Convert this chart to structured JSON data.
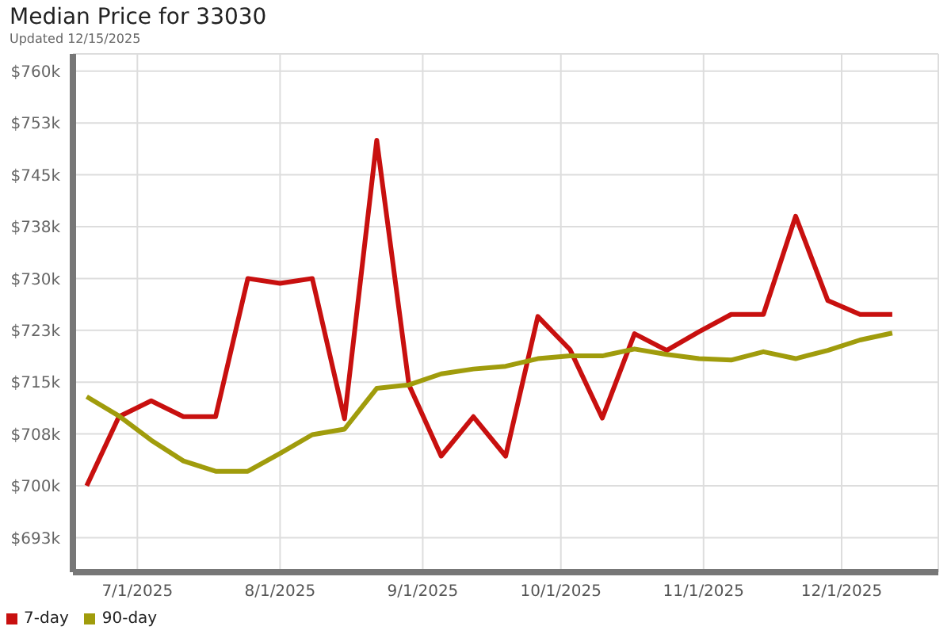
{
  "chart_data": {
    "type": "line",
    "title": "Median Price for 33030",
    "subtitle": "Updated 12/15/2025",
    "x": [
      "2025-06-20",
      "2025-06-27",
      "2025-07-04",
      "2025-07-11",
      "2025-07-18",
      "2025-07-25",
      "2025-08-01",
      "2025-08-08",
      "2025-08-15",
      "2025-08-22",
      "2025-08-29",
      "2025-09-05",
      "2025-09-12",
      "2025-09-19",
      "2025-09-26",
      "2025-10-03",
      "2025-10-10",
      "2025-10-17",
      "2025-10-24",
      "2025-10-31",
      "2025-11-07",
      "2025-11-14",
      "2025-11-21",
      "2025-11-28",
      "2025-12-05",
      "2025-12-12"
    ],
    "series": [
      {
        "name": "7-day",
        "color": "#c8100f",
        "values": [
          700,
          710,
          712.3,
          710,
          710,
          730,
          729.3,
          730,
          709.7,
          750,
          714.6,
          704.3,
          710,
          704.3,
          724.5,
          719.7,
          709.8,
          722,
          719.6,
          722.3,
          724.8,
          724.8,
          739,
          726.8,
          724.8,
          724.8
        ]
      },
      {
        "name": "90-day",
        "color": "#a09c0c",
        "values": [
          712.9,
          710.1,
          706.6,
          703.6,
          702.1,
          702.1,
          704.7,
          707.4,
          708.2,
          714.1,
          714.6,
          716.2,
          716.9,
          717.3,
          718.4,
          718.8,
          718.8,
          719.8,
          719,
          718.4,
          718.2,
          719.4,
          718.4,
          719.6,
          721.1,
          722.1
        ]
      }
    ],
    "xlim": [
      "2025-06-17",
      "2025-12-22"
    ],
    "xticks": [
      {
        "value": "2025-07-01",
        "label": "7/1/2025"
      },
      {
        "value": "2025-08-01",
        "label": "8/1/2025"
      },
      {
        "value": "2025-09-01",
        "label": "9/1/2025"
      },
      {
        "value": "2025-10-01",
        "label": "10/1/2025"
      },
      {
        "value": "2025-11-01",
        "label": "11/1/2025"
      },
      {
        "value": "2025-12-01",
        "label": "12/1/2025"
      }
    ],
    "ylim": [
      687.5,
      762.5
    ],
    "yticks": [
      {
        "value": 692.5,
        "label": "$693k"
      },
      {
        "value": 700,
        "label": "$700k"
      },
      {
        "value": 707.5,
        "label": "$708k"
      },
      {
        "value": 715,
        "label": "$715k"
      },
      {
        "value": 722.5,
        "label": "$723k"
      },
      {
        "value": 730,
        "label": "$730k"
      },
      {
        "value": 737.5,
        "label": "$738k"
      },
      {
        "value": 745,
        "label": "$745k"
      },
      {
        "value": 752.5,
        "label": "$753k"
      },
      {
        "value": 760,
        "label": "$760k"
      }
    ],
    "grid": true,
    "legend": "bottom left",
    "line_style": "solid"
  }
}
